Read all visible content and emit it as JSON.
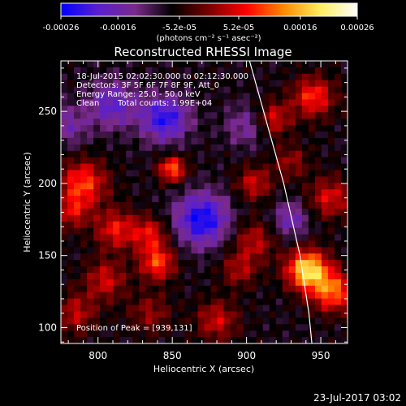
{
  "colorbar": {
    "ticks": [
      "-0.00026",
      "-0.00016",
      "-5.2e-05",
      "5.2e-05",
      "0.00016",
      "0.00026"
    ],
    "tick_values": [
      -0.00026,
      -0.00016,
      -5.2e-05,
      5.2e-05,
      0.00016,
      0.00026
    ],
    "range": [
      -0.00026,
      0.00026
    ],
    "units": "(photons cm⁻² s⁻¹ asec⁻²)",
    "colors": [
      "#0000ff",
      "#5a1fcf",
      "#7a2a8a",
      "#000000",
      "#7a0000",
      "#ff0000",
      "#ff8800",
      "#ffee60",
      "#ffffff"
    ]
  },
  "chart_data": {
    "type": "heatmap",
    "title": "Reconstructed RHESSI Image",
    "xlabel": "Heliocentric X (arcsec)",
    "ylabel": "Heliocentric Y (arcsec)",
    "xlim": [
      775,
      968
    ],
    "ylim": [
      89,
      285
    ],
    "x_ticks": [
      800,
      850,
      900,
      950
    ],
    "y_ticks": [
      100,
      150,
      200,
      250
    ],
    "annotations": [
      "18-Jul-2015 02:02:30.000 to 02:12:30.000",
      "Detectors: 3F 5F 6F 7F 8F 9F, Att_0",
      "Energy Range: 25.0 - 50.0 keV",
      "Clean",
      "Total counts: 1.99E+04"
    ],
    "peak_label": "Position of Peak = [939,131]",
    "peak_position": [
      939,
      131
    ],
    "limb_arc": [
      [
        902,
        285
      ],
      [
        925,
        200
      ],
      [
        936,
        150
      ],
      [
        942,
        110
      ],
      [
        944,
        89
      ]
    ],
    "blobs": [
      {
        "x": 941,
        "y": 140,
        "value": 0.00026,
        "r": 14
      },
      {
        "x": 958,
        "y": 125,
        "value": 0.00018,
        "r": 14
      },
      {
        "x": 945,
        "y": 260,
        "value": 0.00015,
        "r": 14
      },
      {
        "x": 956,
        "y": 190,
        "value": 0.00012,
        "r": 14
      },
      {
        "x": 930,
        "y": 215,
        "value": 8e-05,
        "r": 12
      },
      {
        "x": 790,
        "y": 200,
        "value": 0.00016,
        "r": 16
      },
      {
        "x": 782,
        "y": 180,
        "value": 0.0001,
        "r": 12
      },
      {
        "x": 812,
        "y": 168,
        "value": 0.00013,
        "r": 14
      },
      {
        "x": 835,
        "y": 165,
        "value": 0.00012,
        "r": 12
      },
      {
        "x": 840,
        "y": 145,
        "value": 0.00016,
        "r": 12
      },
      {
        "x": 805,
        "y": 133,
        "value": 0.00011,
        "r": 14
      },
      {
        "x": 905,
        "y": 160,
        "value": 0.0001,
        "r": 14
      },
      {
        "x": 895,
        "y": 140,
        "value": 9e-05,
        "r": 12
      },
      {
        "x": 905,
        "y": 200,
        "value": 0.00011,
        "r": 12
      },
      {
        "x": 918,
        "y": 245,
        "value": 0.00012,
        "r": 12
      },
      {
        "x": 850,
        "y": 210,
        "value": 0.00018,
        "r": 9
      },
      {
        "x": 785,
        "y": 110,
        "value": 0.0001,
        "r": 14
      },
      {
        "x": 835,
        "y": 110,
        "value": 8e-05,
        "r": 14
      },
      {
        "x": 880,
        "y": 105,
        "value": 0.00011,
        "r": 14
      },
      {
        "x": 845,
        "y": 245,
        "value": -0.00016,
        "r": 16
      },
      {
        "x": 810,
        "y": 255,
        "value": -0.00012,
        "r": 16
      },
      {
        "x": 870,
        "y": 175,
        "value": -0.00018,
        "r": 18
      },
      {
        "x": 930,
        "y": 175,
        "value": -0.0001,
        "r": 12
      },
      {
        "x": 900,
        "y": 240,
        "value": -8e-05,
        "r": 14
      },
      {
        "x": 780,
        "y": 240,
        "value": -8e-05,
        "r": 14
      }
    ]
  },
  "footer": {
    "date": "23-Jul-2017 03:02"
  }
}
